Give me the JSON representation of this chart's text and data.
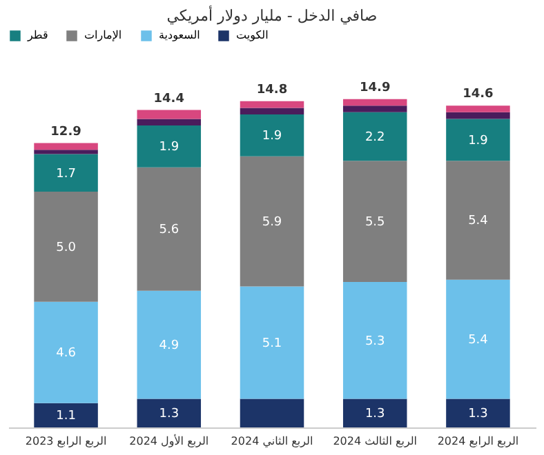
{
  "chart_data": {
    "type": "bar",
    "stacked": true,
    "title": "صافي الدخل - مليار دولار أمريكي",
    "categories": [
      "الربع الرابع 2023",
      "الربع الأول 2024",
      "الربع الثاني 2024",
      "الربع الثالث 2024",
      "الربع الرابع 2024"
    ],
    "series": [
      {
        "name": "الكويت",
        "color": "#1c3468",
        "values": [
          1.1,
          1.3,
          1.3,
          1.3,
          1.3
        ],
        "value_labels": [
          "1.1",
          "1.3",
          null,
          "1.3",
          "1.3"
        ]
      },
      {
        "name": "السعودية",
        "color": "#6cc0ea",
        "values": [
          4.6,
          4.9,
          5.1,
          5.3,
          5.4
        ],
        "value_labels": [
          "4.6",
          "4.9",
          "5.1",
          "5.3",
          "5.4"
        ]
      },
      {
        "name": "الإمارات",
        "color": "#7f7f7f",
        "values": [
          5.0,
          5.6,
          5.9,
          5.5,
          5.4
        ],
        "value_labels": [
          "5.0",
          "5.6",
          "5.9",
          "5.5",
          "5.4"
        ]
      },
      {
        "name": "قطر",
        "color": "#177f80",
        "values": [
          1.7,
          1.9,
          1.9,
          2.2,
          1.9
        ],
        "value_labels": [
          "1.7",
          "1.9",
          "1.9",
          "2.2",
          "1.9"
        ]
      },
      {
        "color": "#4a1c5c",
        "values": [
          0.2,
          0.3,
          0.3,
          0.3,
          0.3
        ]
      },
      {
        "color": "#d8477f",
        "values": [
          0.3,
          0.4,
          0.3,
          0.3,
          0.3
        ]
      }
    ],
    "totals": [
      "12.9",
      "14.4",
      "14.8",
      "14.9",
      "14.6"
    ],
    "legend": "top",
    "grid": false
  }
}
